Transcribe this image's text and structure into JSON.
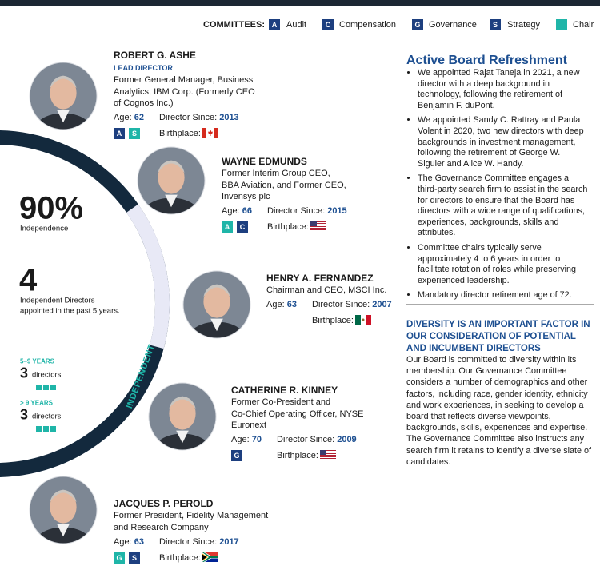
{
  "colors": {
    "committee": "#1d3f7f",
    "chair": "#1fb5a8"
  },
  "legend": {
    "label": "COMMITTEES:",
    "items": [
      {
        "code": "A",
        "label": "Audit",
        "chair": false
      },
      {
        "code": "C",
        "label": "Compensation",
        "chair": false
      },
      {
        "code": "G",
        "label": "Governance",
        "chair": false
      },
      {
        "code": "S",
        "label": "Strategy",
        "chair": false
      },
      {
        "label": "Chair",
        "chair": true
      }
    ]
  },
  "stats": {
    "independence_value": "90%",
    "independence_label": "Independence",
    "new_value": "4",
    "new_label": [
      "Independent Directors",
      "appointed in the past 5 years."
    ],
    "tenure": [
      {
        "label": "5–9 YEARS",
        "value": "3",
        "unit": "directors"
      },
      {
        "label": "> 9 YEARS",
        "value": "3",
        "unit": "directors"
      }
    ],
    "arc_label": "INDEPENDENT"
  },
  "directors": [
    {
      "name": "ROBERT G. ASHE",
      "role": "LEAD DIRECTOR",
      "description": [
        "Former General Manager, Business",
        "Analytics, IBM Corp. (Formerly CEO",
        "of Cognos Inc.)"
      ],
      "age_label": "Age:",
      "age": "62",
      "since_label": "Director Since:",
      "since": "2013",
      "birthplace_label": "Birthplace:",
      "committees": [
        {
          "code": "A",
          "chair": false
        },
        {
          "code": "S",
          "chair": true
        }
      ]
    },
    {
      "name": "WAYNE EDMUNDS",
      "description": [
        "Former Interim Group CEO,",
        "BBA Aviation, and Former CEO,",
        "Invensys plc"
      ],
      "age_label": "Age:",
      "age": "66",
      "since_label": "Director Since:",
      "since": "2015",
      "birthplace_label": "Birthplace:",
      "committees": [
        {
          "code": "A",
          "chair": true
        },
        {
          "code": "C",
          "chair": false
        }
      ]
    },
    {
      "name": "HENRY A. FERNANDEZ",
      "description": [
        "Chairman and CEO, MSCI Inc."
      ],
      "age_label": "Age:",
      "age": "63",
      "since_label": "Director Since:",
      "since": "2007",
      "birthplace_label": "Birthplace:",
      "committees": []
    },
    {
      "name": "CATHERINE R. KINNEY",
      "description": [
        "Former Co-President and",
        "Co-Chief Operating Officer, NYSE",
        "Euronext"
      ],
      "age_label": "Age:",
      "age": "70",
      "since_label": "Director Since:",
      "since": "2009",
      "birthplace_label": "Birthplace:",
      "committees": [
        {
          "code": "G",
          "chair": false
        }
      ]
    },
    {
      "name": "JACQUES P. PEROLD",
      "description": [
        "Former President, Fidelity Management",
        "and Research Company"
      ],
      "age_label": "Age:",
      "age": "63",
      "since_label": "Director Since:",
      "since": "2017",
      "birthplace_label": "Birthplace:",
      "committees": [
        {
          "code": "G",
          "chair": true
        },
        {
          "code": "S",
          "chair": false
        }
      ]
    }
  ],
  "refreshment": {
    "title": "Active Board Refreshment",
    "bullets": [
      "We appointed Rajat Taneja in 2021, a new director with a deep background in technology, following the retirement of Benjamin F. duPont.",
      "We appointed Sandy C. Rattray and Paula Volent in 2020, two new directors with deep backgrounds in investment management, following the retirement of George W. Siguler and Alice W. Handy.",
      "The Governance Committee engages a third-party search firm to assist in the search for directors to ensure that the Board has directors with a wide range of qualifications, experiences, backgrounds, skills and attributes.",
      "Committee chairs typically serve approximately 4 to 6 years in order to facilitate rotation of roles while preserving experienced leadership.",
      "Mandatory director retirement age of 72."
    ]
  },
  "diversity": {
    "title": "DIVERSITY IS AN IMPORTANT FACTOR IN OUR CONSIDERATION OF POTENTIAL AND INCUMBENT DIRECTORS",
    "text": "Our Board is committed to diversity within its membership. Our Governance Committee considers a number of demographics and other factors, including race, gender identity, ethnicity and work experiences, in seeking to develop a board that reflects diverse viewpoints, backgrounds, skills, experiences and expertise. The Governance Committee also instructs any search firm it retains to identify a diverse slate of candidates."
  }
}
